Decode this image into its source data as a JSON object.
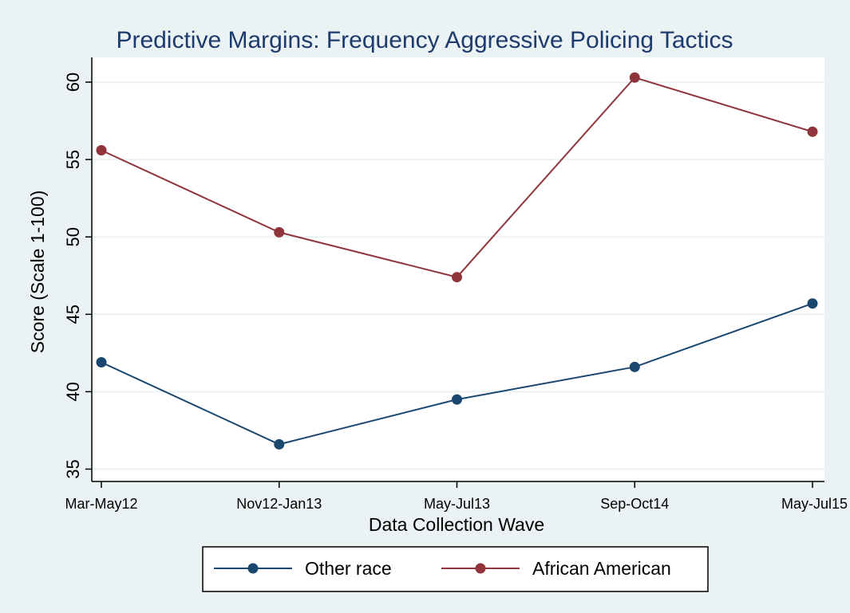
{
  "chart_data": {
    "type": "line",
    "title": "Predictive Margins: Frequency Aggressive Policing Tactics",
    "xlabel": "Data Collection Wave",
    "ylabel": "Score (Scale 1-100)",
    "categories": [
      "Mar-May12",
      "Nov12-Jan13",
      "May-Jul13",
      "Sep-Oct14",
      "May-Jul15"
    ],
    "yticks": [
      35,
      40,
      45,
      50,
      55,
      60
    ],
    "ylim": [
      34.2,
      61.6
    ],
    "grid": true,
    "legend_position": "bottom",
    "series": [
      {
        "name": "Other race",
        "color": "#1a476f",
        "values": [
          41.9,
          36.6,
          39.5,
          41.6,
          45.7
        ]
      },
      {
        "name": "African American",
        "color": "#90353b",
        "values": [
          55.6,
          50.3,
          47.4,
          60.3,
          56.8
        ]
      }
    ],
    "colors": {
      "outer_background": "#eaf2f3",
      "plot_background": "#ffffff",
      "grid": "#eaf2f3",
      "axis": "#000000",
      "title": "#1e3b6e"
    }
  }
}
